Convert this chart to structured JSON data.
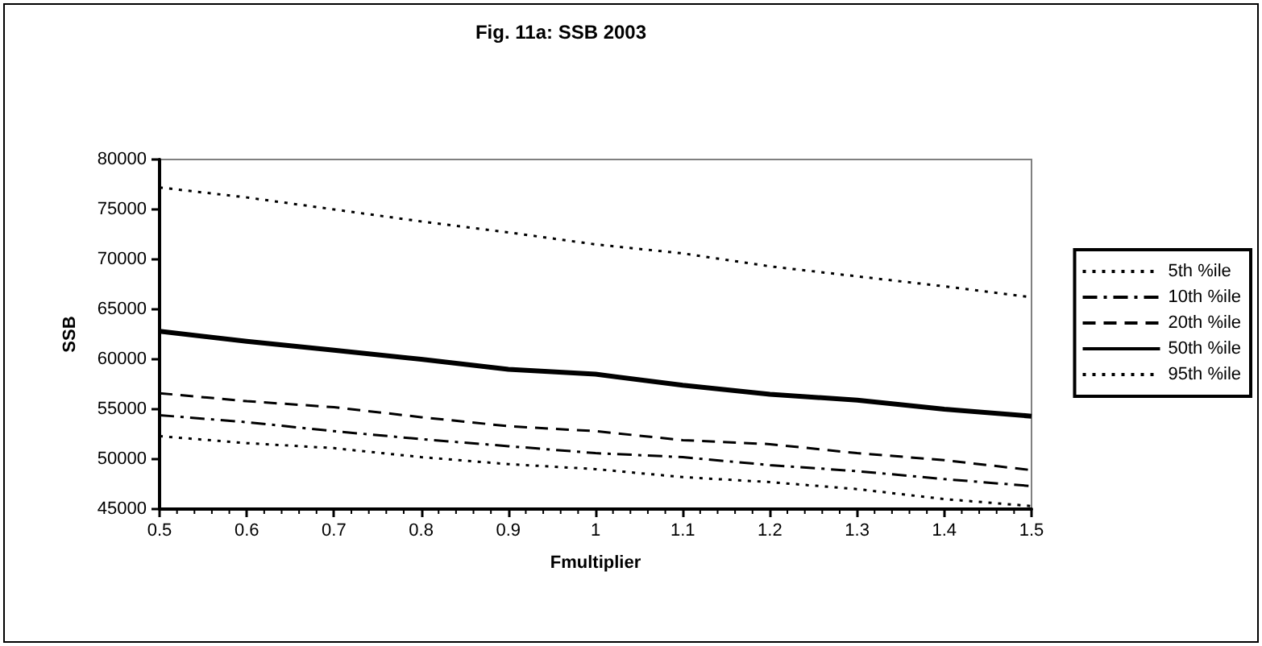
{
  "chart_data": {
    "type": "line",
    "title": "Fig. 11a: SSB 2003",
    "xlabel": "Fmultiplier",
    "ylabel": "SSB",
    "x": [
      0.5,
      0.6,
      0.7,
      0.8,
      0.9,
      1,
      1.1,
      1.2,
      1.3,
      1.4,
      1.5
    ],
    "series": [
      {
        "name": "5th %ile",
        "color": "#000000",
        "line_style": "dotted",
        "values": [
          52300,
          51600,
          51100,
          50200,
          49500,
          49000,
          48200,
          47700,
          47000,
          46000,
          45300
        ]
      },
      {
        "name": "10th %ile",
        "color": "#000000",
        "line_style": "dashdot",
        "values": [
          54400,
          53700,
          52800,
          52000,
          51300,
          50600,
          50200,
          49400,
          48800,
          48000,
          47300
        ]
      },
      {
        "name": "20th %ile",
        "color": "#000000",
        "line_style": "dashed",
        "values": [
          56600,
          55800,
          55200,
          54200,
          53300,
          52800,
          51900,
          51500,
          50600,
          49900,
          48900
        ]
      },
      {
        "name": "50th %ile",
        "color": "#000000",
        "line_style": "solid",
        "values": [
          62800,
          61800,
          60900,
          60000,
          59000,
          58500,
          57400,
          56500,
          55900,
          55000,
          54300
        ]
      },
      {
        "name": "95th %ile",
        "color": "#000000",
        "line_style": "dotted",
        "values": [
          77200,
          76200,
          75000,
          73800,
          72700,
          71500,
          70600,
          69300,
          68300,
          67300,
          66200
        ]
      }
    ],
    "xlim": [
      0.5,
      1.5
    ],
    "xticks": [
      {
        "value": 0.5,
        "label": "0.5"
      },
      {
        "value": 0.6,
        "label": "0.6"
      },
      {
        "value": 0.7,
        "label": "0.7"
      },
      {
        "value": 0.8,
        "label": "0.8"
      },
      {
        "value": 0.9,
        "label": "0.9"
      },
      {
        "value": 1,
        "label": "1"
      },
      {
        "value": 1.1,
        "label": "1.1"
      },
      {
        "value": 1.2,
        "label": "1.2"
      },
      {
        "value": 1.3,
        "label": "1.3"
      },
      {
        "value": 1.4,
        "label": "1.4"
      },
      {
        "value": 1.5,
        "label": "1.5"
      }
    ],
    "ylim": [
      45000,
      80000
    ],
    "yticks": [
      45000,
      50000,
      55000,
      60000,
      65000,
      70000,
      75000,
      80000
    ],
    "grid": false,
    "legend": "right",
    "marker": "none"
  }
}
